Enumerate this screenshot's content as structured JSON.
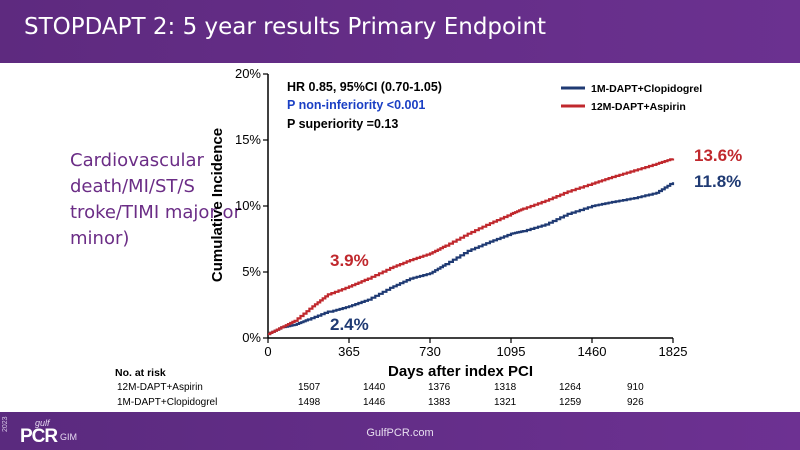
{
  "header": {
    "title": "STOPDAPT 2: 5 year results Primary Endpoint"
  },
  "side_label": "Cardiovascular death/MI/ST/S troke/TIMI major or minor)",
  "footer": {
    "url": "GulfPCR.com",
    "logo_year": "2023",
    "logo_gulf": "gulf",
    "logo_pcr": "PCR",
    "logo_gim": "GIM"
  },
  "colors": {
    "header_bg": "#5e2a7f",
    "red_series": "#c0282d",
    "blue_series": "#1f3a73",
    "pvalue_blue": "#1a3fc4"
  },
  "chart_data": {
    "type": "line",
    "ylabel": "Cumulative Incidence",
    "xlabel": "Days after index PCI",
    "xlim": [
      0,
      1825
    ],
    "ylim": [
      0,
      20
    ],
    "x_ticks": [
      0,
      365,
      730,
      1095,
      1460,
      1825
    ],
    "y_ticks": [
      0,
      5,
      10,
      15,
      20
    ],
    "y_tick_labels": [
      "0%",
      "5%",
      "10%",
      "15%",
      "20%"
    ],
    "annotations": {
      "hr": "HR 0.85, 95%CI (0.70-1.05)",
      "p_noninf": "P non-inferiority <0.001",
      "p_sup": "P superiority =0.13"
    },
    "legend_position": "top-right",
    "series": [
      {
        "name": "1M-DAPT+Clopidogrel",
        "color": "#1f3a73",
        "points": [
          [
            0,
            0.3
          ],
          [
            60,
            0.8
          ],
          [
            120,
            1.0
          ],
          [
            180,
            1.4
          ],
          [
            270,
            2.0
          ],
          [
            280,
            2.0
          ],
          [
            365,
            2.4
          ],
          [
            450,
            2.9
          ],
          [
            550,
            3.8
          ],
          [
            640,
            4.5
          ],
          [
            730,
            4.9
          ],
          [
            800,
            5.6
          ],
          [
            900,
            6.6
          ],
          [
            1000,
            7.3
          ],
          [
            1095,
            7.9
          ],
          [
            1150,
            8.1
          ],
          [
            1250,
            8.6
          ],
          [
            1350,
            9.4
          ],
          [
            1460,
            10.0
          ],
          [
            1550,
            10.3
          ],
          [
            1650,
            10.6
          ],
          [
            1750,
            11.0
          ],
          [
            1825,
            11.8
          ]
        ],
        "end_label": "11.8%",
        "mid_label": "2.4%"
      },
      {
        "name": "12M-DAPT+Aspirin",
        "color": "#c0282d",
        "points": [
          [
            0,
            0.3
          ],
          [
            60,
            0.8
          ],
          [
            120,
            1.3
          ],
          [
            200,
            2.4
          ],
          [
            270,
            3.3
          ],
          [
            365,
            3.9
          ],
          [
            450,
            4.5
          ],
          [
            550,
            5.3
          ],
          [
            640,
            5.9
          ],
          [
            730,
            6.4
          ],
          [
            800,
            7.0
          ],
          [
            900,
            7.9
          ],
          [
            1000,
            8.7
          ],
          [
            1095,
            9.4
          ],
          [
            1150,
            9.8
          ],
          [
            1250,
            10.4
          ],
          [
            1350,
            11.1
          ],
          [
            1460,
            11.7
          ],
          [
            1550,
            12.2
          ],
          [
            1650,
            12.7
          ],
          [
            1750,
            13.2
          ],
          [
            1825,
            13.6
          ]
        ],
        "end_label": "13.6%",
        "mid_label": "3.9%"
      }
    ]
  },
  "risk_table": {
    "header": "No. at risk",
    "rows": [
      {
        "label": "12M-DAPT+Aspirin",
        "values": [
          "1507",
          "1440",
          "1376",
          "1318",
          "1264",
          "910"
        ]
      },
      {
        "label": "1M-DAPT+Clopidogrel",
        "values": [
          "1498",
          "1446",
          "1383",
          "1321",
          "1259",
          "926"
        ]
      }
    ]
  }
}
